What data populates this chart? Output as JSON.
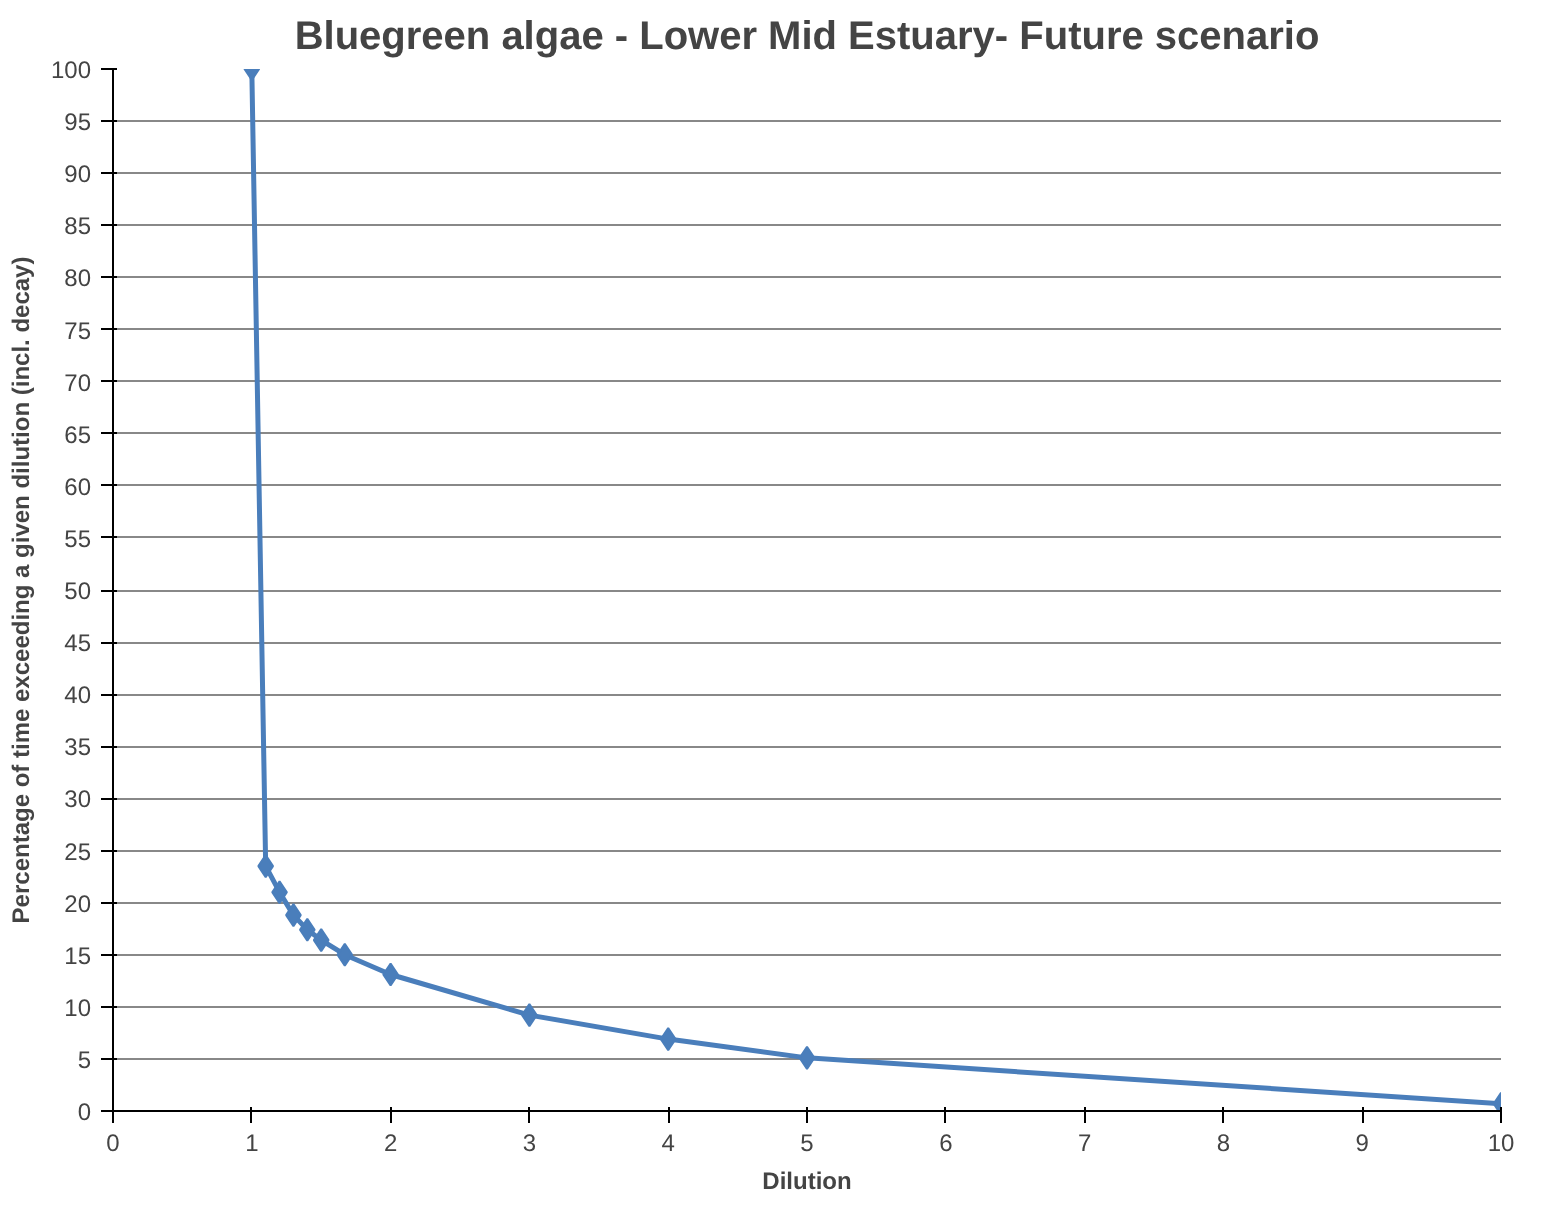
{
  "chart_data": {
    "type": "line",
    "title": "Bluegreen algae - Lower Mid Estuary- Future scenario",
    "xlabel": "Dilution",
    "ylabel": "Percentage of time exceeding a given dilution (incl. decay)",
    "x": [
      1,
      1.1,
      1.2,
      1.3,
      1.4,
      1.5,
      1.67,
      2,
      3,
      4,
      5,
      10
    ],
    "series": [
      {
        "color": "#4a7ebb",
        "values": [
          100,
          23.5,
          21,
          18.8,
          17.4,
          16.4,
          15,
          13.1,
          9.2,
          6.9,
          5.1,
          0.7
        ]
      }
    ],
    "xlim": [
      0,
      10
    ],
    "xticks": [
      0,
      1,
      2,
      3,
      4,
      5,
      6,
      7,
      8,
      9,
      10
    ],
    "ylim": [
      0,
      100
    ],
    "yticks": [
      0,
      5,
      10,
      15,
      20,
      25,
      30,
      35,
      40,
      45,
      50,
      55,
      60,
      65,
      70,
      75,
      80,
      85,
      90,
      95,
      100
    ],
    "grid": "y",
    "marker": "diamond",
    "line_style": "solid"
  }
}
